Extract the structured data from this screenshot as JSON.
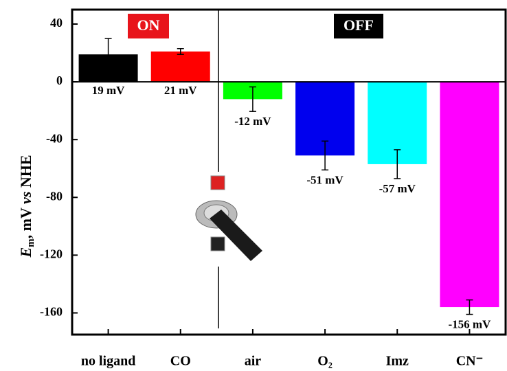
{
  "chart_data": {
    "type": "bar",
    "ylabel": [
      "E",
      "m",
      ", mV ",
      "vs",
      " NHE"
    ],
    "categories": [
      "no ligand",
      "CO",
      "air",
      "O₂",
      "Imz",
      "CN⁻"
    ],
    "values": [
      19,
      21,
      -12,
      -51,
      -57,
      -156
    ],
    "value_labels": [
      "19 mV",
      "21 mV",
      "-12 mV",
      "-51 mV",
      "-57 mV",
      "-156 mV"
    ],
    "errors": [
      11,
      2,
      8.5,
      10,
      10,
      5
    ],
    "colors": [
      "#000000",
      "#ff0000",
      "#00ff00",
      "#0000ee",
      "#00ffff",
      "#ff00ff"
    ],
    "ylim": [
      -175,
      50
    ],
    "yticks": [
      -160,
      -120,
      -80,
      -40,
      0,
      40
    ],
    "annotations": [
      "ON",
      "OFF"
    ]
  }
}
